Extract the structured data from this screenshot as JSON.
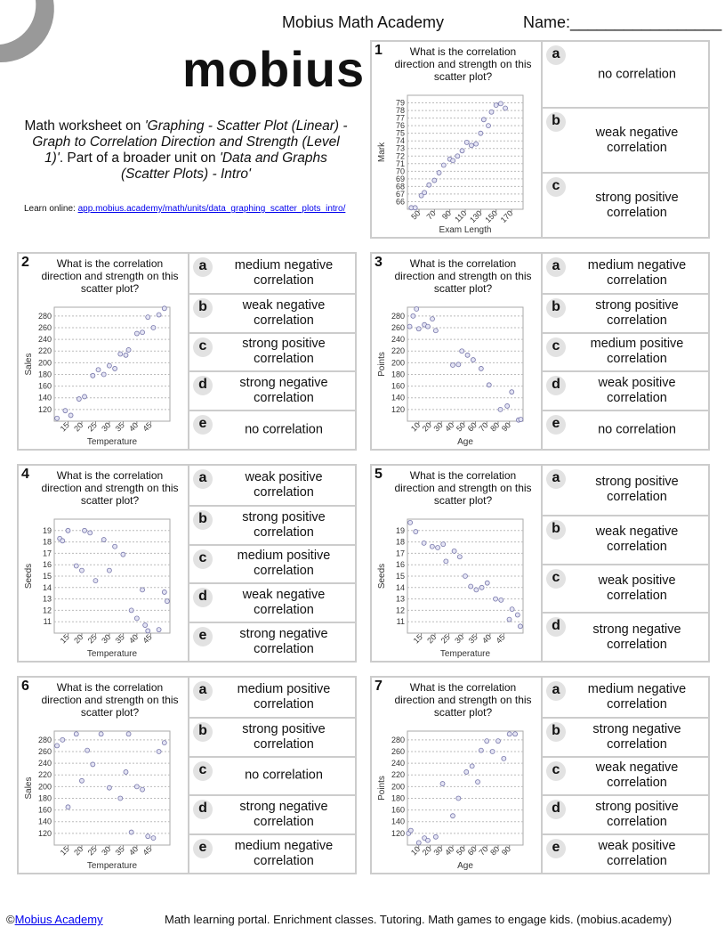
{
  "header": {
    "title": "Mobius Math Academy",
    "name_label": "Name:_________________",
    "logo": "mobius",
    "description": {
      "prefix": "Math worksheet on ",
      "topic": "'Graphing - Scatter Plot (Linear) - Graph to Correlation Direction and Strength (Level 1)'",
      "middle": ". Part of a broader unit on ",
      "unit": "'Data and Graphs (Scatter Plots) - Intro'"
    },
    "learn_label": "Learn online: ",
    "learn_link": "app.mobius.academy/math/units/data_graphing_scatter_plots_intro/"
  },
  "questions": [
    {
      "number": 1,
      "question": "What is the correlation direction and strength on this scatter plot?",
      "chart": {
        "type": "scatter",
        "xlabel": "Exam Length",
        "ylabel": "Mark",
        "xlim": [
          35,
          185
        ],
        "ylim": [
          65,
          80
        ],
        "xticks": [
          50,
          70,
          90,
          110,
          130,
          150,
          170
        ],
        "yticks": [
          66,
          67,
          68,
          69,
          70,
          71,
          72,
          73,
          74,
          75,
          76,
          77,
          78,
          79
        ],
        "x": [
          40,
          45,
          53,
          57,
          63,
          70,
          76,
          82,
          90,
          94,
          100,
          106,
          112,
          118,
          124,
          130,
          134,
          140,
          144,
          150,
          156,
          162
        ],
        "y": [
          65.2,
          65.2,
          66.8,
          67.2,
          68.2,
          68.8,
          69.8,
          70.8,
          71.6,
          71.4,
          72,
          72.7,
          73.8,
          73.4,
          73.6,
          75,
          76.8,
          76,
          77.8,
          78.7,
          78.9,
          78.3
        ]
      },
      "options": [
        {
          "letter": "a",
          "text": "no correlation"
        },
        {
          "letter": "b",
          "text": "weak negative correlation"
        },
        {
          "letter": "c",
          "text": "strong positive correlation"
        }
      ]
    },
    {
      "number": 2,
      "question": "What is the correlation direction and strength on this scatter plot?",
      "chart": {
        "type": "scatter",
        "xlabel": "Temperature",
        "ylabel": "Sales",
        "xlim": [
          10,
          52
        ],
        "ylim": [
          100,
          295
        ],
        "xticks": [
          15,
          20,
          25,
          30,
          35,
          40,
          45
        ],
        "yticks": [
          120,
          140,
          160,
          180,
          200,
          220,
          240,
          260,
          280
        ],
        "x": [
          11,
          14,
          16,
          19,
          21,
          24,
          26,
          28,
          30,
          32,
          34,
          36,
          37,
          40,
          42,
          44,
          46,
          48,
          50
        ],
        "y": [
          105,
          118,
          110,
          138,
          142,
          178,
          188,
          180,
          195,
          190,
          215,
          213,
          222,
          250,
          252,
          278,
          260,
          282,
          293
        ]
      },
      "options": [
        {
          "letter": "a",
          "text": "medium negative correlation"
        },
        {
          "letter": "b",
          "text": "weak negative correlation"
        },
        {
          "letter": "c",
          "text": "strong positive correlation"
        },
        {
          "letter": "d",
          "text": "strong negative correlation"
        },
        {
          "letter": "e",
          "text": "no correlation"
        }
      ]
    },
    {
      "number": 3,
      "question": "What is the correlation direction and strength on this scatter plot?",
      "chart": {
        "type": "scatter",
        "xlabel": "Age",
        "ylabel": "Points",
        "xlim": [
          0,
          102
        ],
        "ylim": [
          100,
          295
        ],
        "xticks": [
          10,
          20,
          30,
          40,
          50,
          60,
          70,
          80,
          90
        ],
        "yticks": [
          120,
          140,
          160,
          180,
          200,
          220,
          240,
          260,
          280
        ],
        "x": [
          2,
          5,
          8,
          10,
          15,
          18,
          22,
          25,
          40,
          45,
          48,
          53,
          58,
          65,
          72,
          82,
          88,
          92,
          98,
          100
        ],
        "y": [
          262,
          280,
          292,
          258,
          265,
          262,
          275,
          255,
          196,
          197,
          220,
          213,
          205,
          190,
          162,
          120,
          126,
          150,
          102,
          103
        ]
      },
      "options": [
        {
          "letter": "a",
          "text": "medium negative correlation"
        },
        {
          "letter": "b",
          "text": "strong positive correlation"
        },
        {
          "letter": "c",
          "text": "medium positive correlation"
        },
        {
          "letter": "d",
          "text": "weak positive correlation"
        },
        {
          "letter": "e",
          "text": "no correlation"
        }
      ]
    },
    {
      "number": 4,
      "question": "What is the correlation direction and strength on this scatter plot?",
      "chart": {
        "type": "scatter",
        "xlabel": "Temperature",
        "ylabel": "Seeds",
        "xlim": [
          10,
          52
        ],
        "ylim": [
          10,
          20
        ],
        "xticks": [
          15,
          20,
          25,
          30,
          35,
          40,
          45
        ],
        "yticks": [
          11,
          12,
          13,
          14,
          15,
          16,
          17,
          18,
          19
        ],
        "x": [
          12,
          13,
          15,
          18,
          20,
          21,
          23,
          25,
          28,
          30,
          32,
          35,
          38,
          40,
          42,
          43,
          44,
          48,
          50,
          51
        ],
        "y": [
          18.3,
          18.1,
          19,
          15.9,
          15.5,
          19,
          18.8,
          14.6,
          18.2,
          15.5,
          17.6,
          16.9,
          12,
          11.3,
          13.8,
          10.7,
          10.2,
          10.3,
          13.6,
          12.8
        ]
      },
      "options": [
        {
          "letter": "a",
          "text": "weak positive correlation"
        },
        {
          "letter": "b",
          "text": "strong positive correlation"
        },
        {
          "letter": "c",
          "text": "medium positive correlation"
        },
        {
          "letter": "d",
          "text": "weak negative correlation"
        },
        {
          "letter": "e",
          "text": "strong negative correlation"
        }
      ]
    },
    {
      "number": 5,
      "question": "What is the correlation direction and strength on this scatter plot?",
      "chart": {
        "type": "scatter",
        "xlabel": "Temperature",
        "ylabel": "Seeds",
        "xlim": [
          10,
          52
        ],
        "ylim": [
          10,
          20
        ],
        "xticks": [
          15,
          20,
          25,
          30,
          35,
          40,
          45
        ],
        "yticks": [
          11,
          12,
          13,
          14,
          15,
          16,
          17,
          18,
          19
        ],
        "x": [
          11,
          13,
          16,
          19,
          21,
          23,
          24,
          27,
          29,
          31,
          33,
          35,
          37,
          39,
          42,
          44,
          47,
          48,
          50,
          51
        ],
        "y": [
          19.7,
          18.9,
          17.9,
          17.6,
          17.5,
          17.8,
          16.3,
          17.2,
          16.7,
          15,
          14.1,
          13.8,
          14,
          14.4,
          13,
          12.9,
          11.2,
          12.1,
          11.6,
          10.6
        ]
      },
      "options": [
        {
          "letter": "a",
          "text": "strong positive correlation"
        },
        {
          "letter": "b",
          "text": "weak negative correlation"
        },
        {
          "letter": "c",
          "text": "weak positive correlation"
        },
        {
          "letter": "d",
          "text": "strong negative correlation"
        }
      ]
    },
    {
      "number": 6,
      "question": "What is the correlation direction and strength on this scatter plot?",
      "chart": {
        "type": "scatter",
        "xlabel": "Temperature",
        "ylabel": "Sales",
        "xlim": [
          10,
          52
        ],
        "ylim": [
          100,
          295
        ],
        "xticks": [
          15,
          20,
          25,
          30,
          35,
          40,
          45
        ],
        "yticks": [
          120,
          140,
          160,
          180,
          200,
          220,
          240,
          260,
          280
        ],
        "x": [
          11,
          13,
          15,
          18,
          20,
          22,
          24,
          27,
          30,
          34,
          36,
          37,
          38,
          40,
          42,
          44,
          46,
          48,
          50
        ],
        "y": [
          270,
          280,
          165,
          290,
          210,
          262,
          238,
          290,
          198,
          180,
          225,
          290,
          122,
          200,
          195,
          115,
          112,
          260,
          275
        ]
      },
      "options": [
        {
          "letter": "a",
          "text": "medium positive correlation"
        },
        {
          "letter": "b",
          "text": "strong positive correlation"
        },
        {
          "letter": "c",
          "text": "no correlation"
        },
        {
          "letter": "d",
          "text": "strong negative correlation"
        },
        {
          "letter": "e",
          "text": "medium negative correlation"
        }
      ]
    },
    {
      "number": 7,
      "question": "What is the correlation direction and strength on this scatter plot?",
      "chart": {
        "type": "scatter",
        "xlabel": "Age",
        "ylabel": "Points",
        "xlim": [
          0,
          102
        ],
        "ylim": [
          100,
          295
        ],
        "xticks": [
          10,
          20,
          30,
          40,
          50,
          60,
          70,
          80,
          90
        ],
        "yticks": [
          120,
          140,
          160,
          180,
          200,
          220,
          240,
          260,
          280
        ],
        "x": [
          1,
          3,
          10,
          15,
          18,
          25,
          31,
          40,
          45,
          52,
          57,
          62,
          65,
          70,
          75,
          80,
          85,
          90,
          95
        ],
        "y": [
          120,
          125,
          104,
          112,
          108,
          114,
          205,
          150,
          180,
          225,
          235,
          208,
          262,
          278,
          260,
          278,
          248,
          290,
          290
        ]
      },
      "options": [
        {
          "letter": "a",
          "text": "medium negative correlation"
        },
        {
          "letter": "b",
          "text": "strong negative correlation"
        },
        {
          "letter": "c",
          "text": "weak negative correlation"
        },
        {
          "letter": "d",
          "text": "strong positive correlation"
        },
        {
          "letter": "e",
          "text": "weak positive correlation"
        }
      ]
    }
  ],
  "footer": {
    "copyright": "©",
    "link": "Mobius Academy",
    "tagline": "Math learning portal. Enrichment classes. Tutoring. Math games to engage kids. (mobius.academy)"
  }
}
